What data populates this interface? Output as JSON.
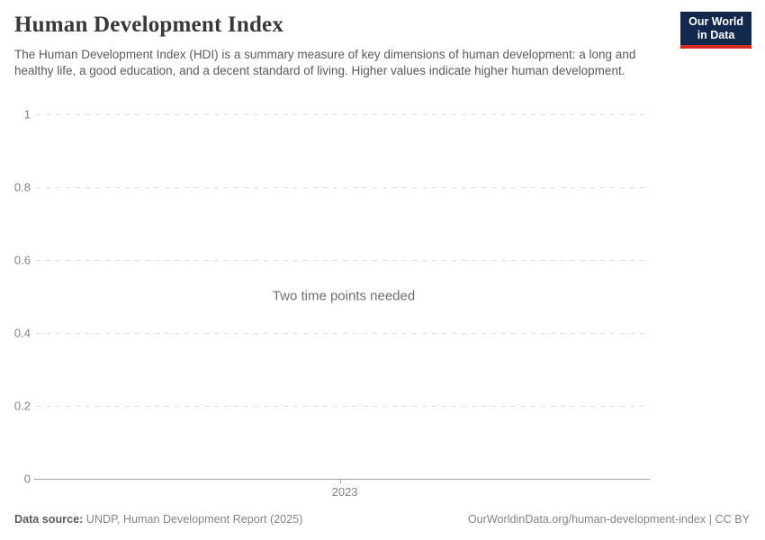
{
  "header": {
    "title": "Human Development Index",
    "subtitle": "The Human Development Index (HDI) is a summary measure of key dimensions of human development: a long and healthy life, a good education, and a decent standard of living. Higher values indicate higher human development.",
    "logo": {
      "line1": "Our World",
      "line2": "in Data",
      "bg_color": "#12294d",
      "stripe_color": "#d42b21"
    }
  },
  "chart_data": {
    "type": "line",
    "title": "Human Development Index",
    "series": [],
    "message": "Two time points needed",
    "y_ticks": [
      "0",
      "0.2",
      "0.4",
      "0.6",
      "0.8",
      "1"
    ],
    "ylim": [
      0,
      1
    ],
    "x_ticks": [
      {
        "label": "2023",
        "position": 0.495
      }
    ],
    "grid": true,
    "legend": "none",
    "xlabel": "",
    "ylabel": ""
  },
  "footer": {
    "source_label": "Data source:",
    "source_text": " UNDP, Human Development Report (2025)",
    "link_text": "OurWorldinData.org/human-development-index | CC BY"
  }
}
